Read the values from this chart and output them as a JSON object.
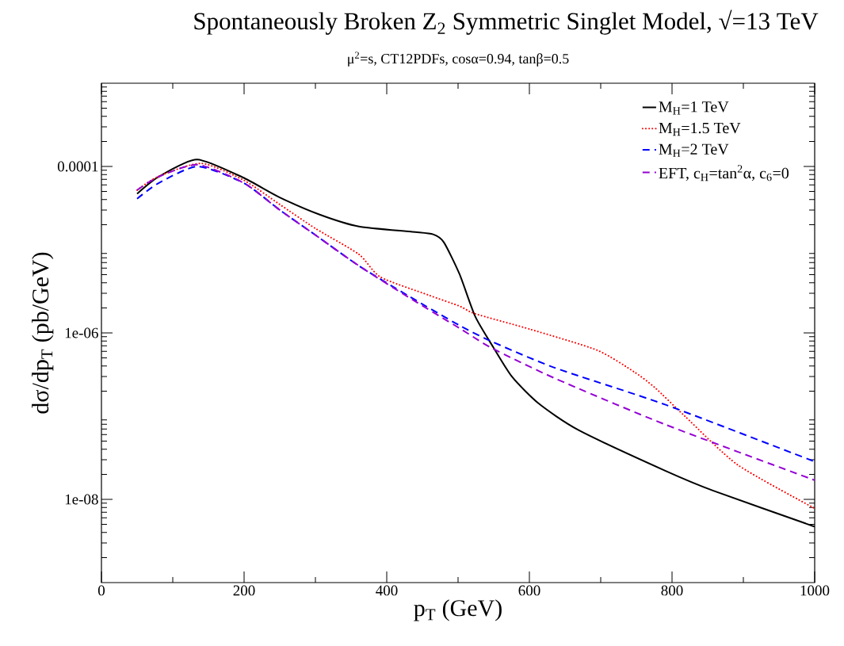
{
  "chart_data": {
    "type": "line",
    "title": "Spontaneously Broken Z$_{2}$ Symmetric Singlet Model, √=13 TeV",
    "subtitle": "μ$^{2}$=s, CT12PDFs, cosα=0.94, tanβ=0.5",
    "xlabel": "p$_{T}$ (GeV)",
    "ylabel": "dσ/dp$_{T}$ (pb/GeV)",
    "xlim": [
      0,
      1000
    ],
    "xticks": [
      0,
      200,
      400,
      600,
      800,
      1000
    ],
    "ylim": [
      1e-09,
      0.001
    ],
    "yticks": [
      {
        "value": 1e-08,
        "label": "1e-08"
      },
      {
        "value": 1e-06,
        "label": "1e-06"
      },
      0.0001
    ],
    "log": "y",
    "grid": false,
    "legend": "top right",
    "marker": "none",
    "series": [
      {
        "name": "M$_{H}$=1 TeV",
        "color": "#000000",
        "line_style": "solid",
        "x": [
          50,
          80,
          134,
          198,
          250,
          306,
          361,
          436,
          465,
          480,
          502,
          524,
          550,
          576,
          613,
          669,
          791,
          858,
          1000
        ],
        "values": [
          4.7e-05,
          7.5e-05,
          0.000121,
          7.4e-05,
          4.25e-05,
          2.64e-05,
          1.9e-05,
          1.64e-05,
          1.53e-05,
          1.23e-05,
          5.1e-06,
          1.58e-06,
          6.6e-07,
          2.95e-07,
          1.42e-07,
          6.8e-08,
          2.2e-08,
          1.27e-08,
          4.7e-09
        ]
      },
      {
        "name": "M$_{H}$=1.5 TeV",
        "color": "#ff0000",
        "line_style": "dotted",
        "x": [
          50,
          80,
          140,
          200,
          250,
          300,
          361,
          391,
          458,
          502,
          524,
          602,
          695,
          747,
          776,
          819,
          892,
          1000
        ],
        "values": [
          5.2e-05,
          7.6e-05,
          0.000109,
          6.8e-05,
          3.5e-05,
          1.8e-05,
          8.8e-06,
          4.7e-06,
          2.86e-06,
          2.1e-06,
          1.7e-06,
          1.1e-06,
          6.2e-07,
          3.4e-07,
          2.2e-07,
          9.8e-08,
          2.6e-08,
          7.8e-09
        ]
      },
      {
        "name": "M$_{H}$=2 TeV",
        "color": "#0000ff",
        "line_style": "dashed",
        "x": [
          50,
          80,
          135,
          200,
          250,
          300,
          361,
          430,
          502,
          547,
          636,
          791,
          1000
        ],
        "values": [
          4.1e-05,
          6.3e-05,
          0.0001,
          6.3e-05,
          3e-05,
          1.5e-05,
          6.4e-06,
          2.8e-06,
          1.23e-06,
          7.9e-07,
          3.8e-07,
          1.37e-07,
          2.84e-08
        ]
      },
      {
        "name": "EFT, c$_{H}$=tan$^{2}$α, c$_{6}$=0",
        "color": "#9400d3",
        "line_style": "dashed",
        "x": [
          50,
          80,
          135,
          200,
          250,
          300,
          361,
          430,
          502,
          547,
          636,
          791,
          1000
        ],
        "values": [
          5.2e-05,
          7.5e-05,
          0.000105,
          6.3e-05,
          3e-05,
          1.5e-05,
          6.4e-06,
          2.7e-06,
          1.14e-06,
          6.6e-07,
          2.84e-07,
          7.9e-08,
          1.7e-08
        ]
      }
    ]
  }
}
